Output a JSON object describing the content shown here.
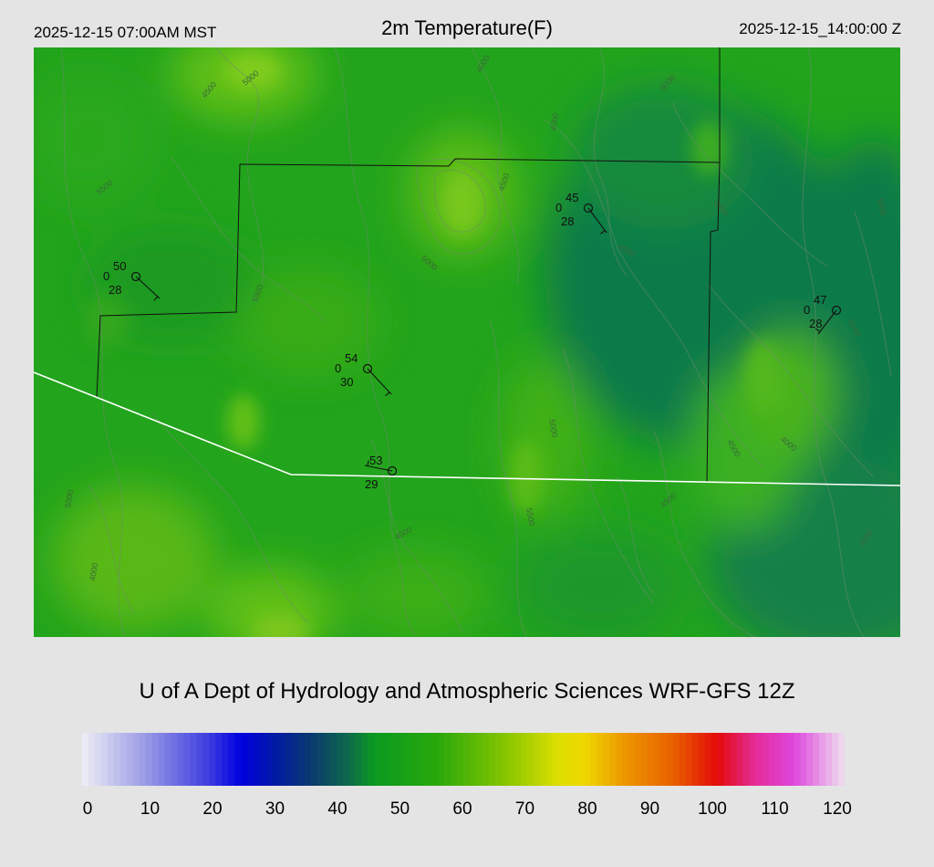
{
  "header": {
    "local_time": "2025-12-15 07:00AM MST",
    "title": "2m Temperature(F)",
    "utc_time": "2025-12-15_14:00:00 Z"
  },
  "credit": "U of A Dept of Hydrology and Atmospheric Sciences WRF-GFS 12Z",
  "colorbar": {
    "min": 0,
    "max": 120,
    "ticks": [
      "0",
      "10",
      "20",
      "30",
      "40",
      "50",
      "60",
      "70",
      "80",
      "90",
      "100",
      "110",
      "120"
    ],
    "stops": [
      {
        "v": 0,
        "c": "#eeeef6"
      },
      {
        "v": 10,
        "c": "#9a9ae6"
      },
      {
        "v": 20,
        "c": "#3c3ce0"
      },
      {
        "v": 25,
        "c": "#0000e0"
      },
      {
        "v": 30,
        "c": "#0018a8"
      },
      {
        "v": 36,
        "c": "#0a3a70"
      },
      {
        "v": 42,
        "c": "#0e6a4a"
      },
      {
        "v": 46,
        "c": "#0a9a20"
      },
      {
        "v": 56,
        "c": "#2aa80c"
      },
      {
        "v": 66,
        "c": "#80c400"
      },
      {
        "v": 75,
        "c": "#dede00"
      },
      {
        "v": 79,
        "c": "#eed800"
      },
      {
        "v": 85,
        "c": "#ee9a00"
      },
      {
        "v": 93,
        "c": "#e86000"
      },
      {
        "v": 100,
        "c": "#e40a0a"
      },
      {
        "v": 106,
        "c": "#e42c9a"
      },
      {
        "v": 112,
        "c": "#de46de"
      },
      {
        "v": 120,
        "c": "#eee0ee"
      }
    ]
  },
  "stations": [
    {
      "id": "station-1",
      "temp": "50",
      "cloud": "0",
      "dew": "28"
    },
    {
      "id": "station-2",
      "temp": "45",
      "cloud": "0",
      "dew": "28"
    },
    {
      "id": "station-3",
      "temp": "47",
      "cloud": "0",
      "dew": "28"
    },
    {
      "id": "station-4",
      "temp": "54",
      "cloud": "0",
      "dew": "30"
    },
    {
      "id": "station-5",
      "temp": "53",
      "cloud": "",
      "dew": "29"
    }
  ],
  "contour_labels": [
    "4000",
    "4500",
    "5000",
    "5500",
    "6000",
    "4000",
    "4500",
    "5000",
    "5500",
    "4000",
    "4500",
    "5000",
    "5500",
    "4000",
    "4500",
    "5000",
    "5500",
    "4500",
    "4000",
    "5000",
    "4000",
    "4500"
  ]
}
